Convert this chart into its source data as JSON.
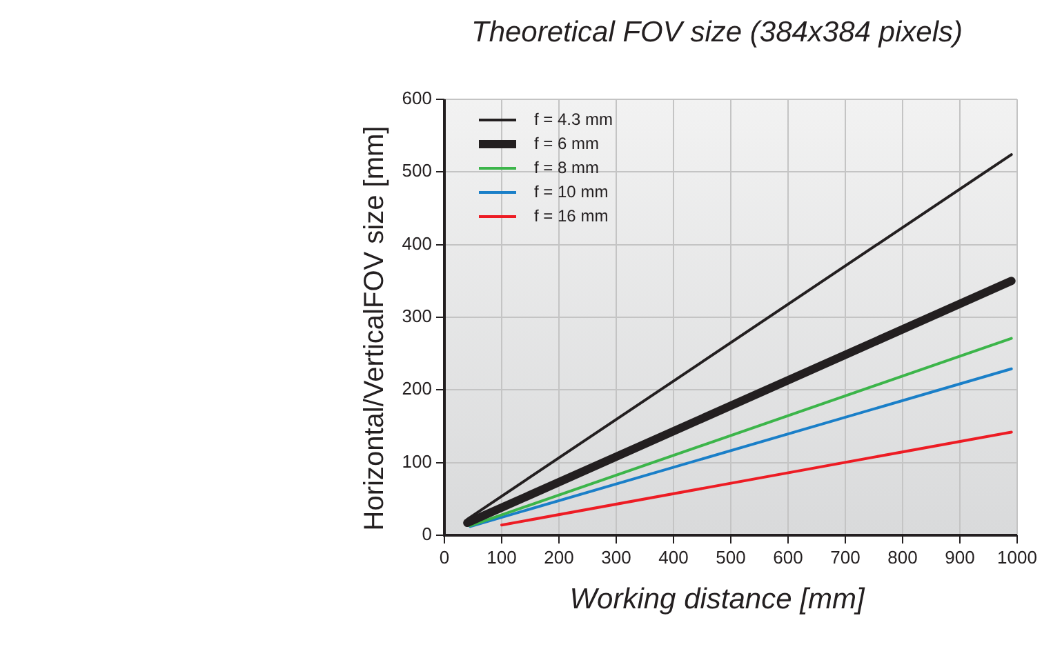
{
  "chart_data": {
    "type": "line",
    "title": "Theoretical FOV size (384x384 pixels)",
    "xlabel": "Working distance [mm]",
    "ylabel": "Horizontal/VerticalFOV size [mm]",
    "xlim": [
      0,
      1000
    ],
    "xticks": [
      0,
      100,
      200,
      300,
      400,
      500,
      600,
      700,
      800,
      900,
      1000
    ],
    "ylim": [
      0,
      600
    ],
    "yticks": [
      0,
      100,
      200,
      300,
      400,
      500,
      600
    ],
    "grid": true,
    "legend": "top left",
    "marker": "none",
    "line_style": "solid",
    "series": [
      {
        "name": "f = 4.3 mm",
        "color": "#231f20",
        "x": [
          40,
          990
        ],
        "values": [
          22,
          524
        ]
      },
      {
        "name": "f = 6 mm",
        "color": "#231f20",
        "x": [
          40,
          990
        ],
        "values": [
          17,
          350
        ]
      },
      {
        "name": "f = 8 mm",
        "color": "#3cb54a",
        "x": [
          45,
          990
        ],
        "values": [
          13,
          271
        ]
      },
      {
        "name": "f = 10 mm",
        "color": "#1a7fc8",
        "x": [
          45,
          990
        ],
        "values": [
          12,
          229
        ]
      },
      {
        "name": "f = 16 mm",
        "color": "#ed1c24",
        "x": [
          100,
          990
        ],
        "values": [
          14,
          142
        ]
      }
    ]
  }
}
